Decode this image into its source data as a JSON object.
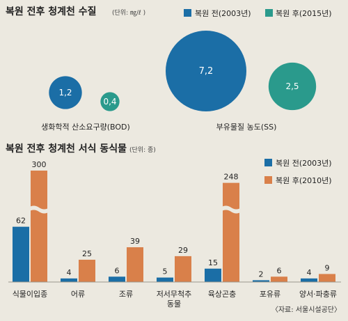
{
  "colors": {
    "background": "#ece9e0",
    "blue": "#1b6ea6",
    "teal": "#2a9a8c",
    "orange": "#d9804a",
    "bubble_text": "#ffffff",
    "text": "#222222"
  },
  "chart_data": [
    {
      "type": "bubble",
      "title": "복원 전후 청계천 수질",
      "unit_note": "(단위: ㎎/ℓ )",
      "legend": [
        {
          "label": "복원 전(2003년)",
          "color": "#1b6ea6"
        },
        {
          "label": "복원 후(2015년)",
          "color": "#2a9a8c"
        }
      ],
      "categories": [
        "생화학적 산소요구량(BOD)",
        "부유물질 농도(SS)"
      ],
      "series": [
        {
          "name": "복원 전(2003년)",
          "values": [
            1.2,
            7.2
          ],
          "labels": [
            "1,2",
            "7,2"
          ]
        },
        {
          "name": "복원 후(2015년)",
          "values": [
            0.4,
            2.5
          ],
          "labels": [
            "0,4",
            "2,5"
          ]
        }
      ]
    },
    {
      "type": "bar",
      "title": "복원 전후 청계천 서식 동식물",
      "unit_note": "(단위: 종)",
      "legend": [
        {
          "label": "복원 전(2003년)",
          "color": "#1b6ea6"
        },
        {
          "label": "복원 후(2010년)",
          "color": "#d9804a"
        }
      ],
      "categories": [
        "식물이입종",
        "어류",
        "조류",
        "저서무척추\n동물",
        "육상곤충",
        "포유류",
        "양서·파충류"
      ],
      "series": [
        {
          "name": "복원 전(2003년)",
          "values": [
            62,
            4,
            6,
            5,
            15,
            2,
            4
          ]
        },
        {
          "name": "복원 후(2010년)",
          "values": [
            300,
            25,
            39,
            29,
            248,
            6,
            9
          ]
        }
      ],
      "axis_break": true
    }
  ],
  "source": "〈자료: 서울시설공단〉"
}
